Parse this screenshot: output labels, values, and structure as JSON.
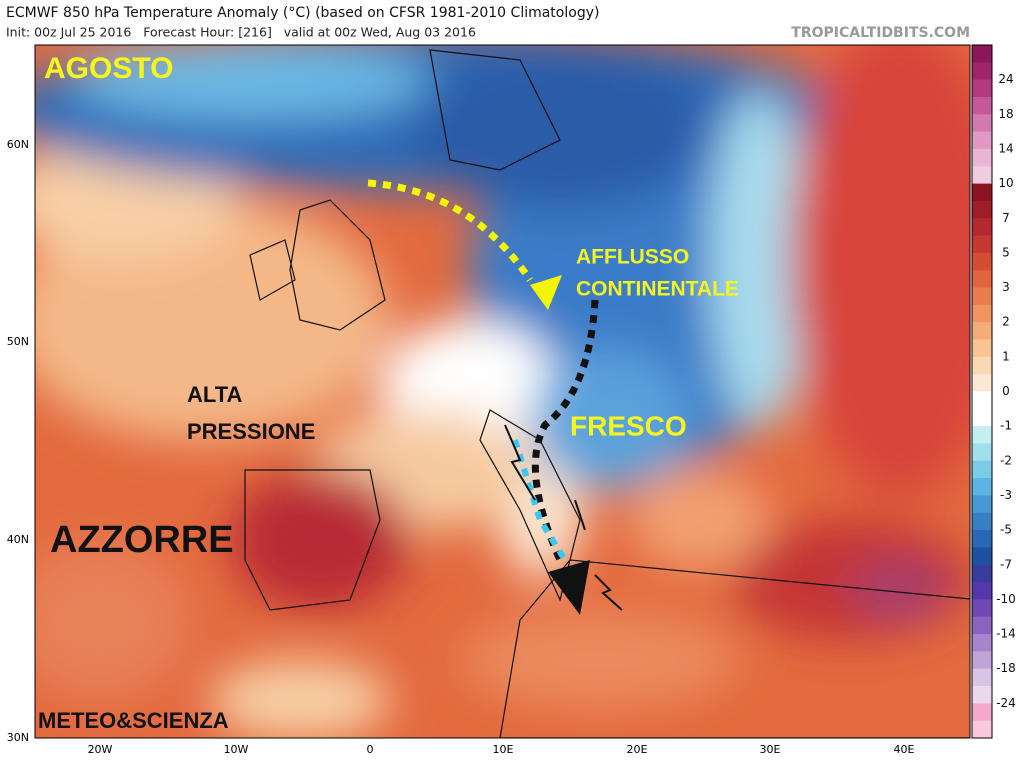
{
  "header": {
    "title": "ECMWF 850 hPa Temperature Anomaly (°C) (based on CFSR 1981-2010 Climatology)",
    "init": "Init: 00z Jul 25 2016   Forecast Hour: [216]   valid at 00z Wed, Aug 03 2016",
    "source": "TROPICALTIDBITS.COM"
  },
  "map": {
    "lat_labels": [
      "60N",
      "50N",
      "40N",
      "30N"
    ],
    "lon_labels": [
      "20W",
      "10W",
      "0",
      "10E",
      "20E",
      "30E",
      "40E"
    ],
    "annotations": [
      "AGOSTO",
      "AFFLUSSO",
      "CONTINENTALE",
      "ALTA",
      "PRESSIONE",
      "FRESCO",
      "AZZORRE",
      "METEO&SCIENZA"
    ]
  },
  "colorbar": {
    "labels": [
      24,
      18,
      14,
      10,
      7,
      5,
      3,
      2,
      1,
      0,
      -1,
      -2,
      -3,
      -5,
      -7,
      -10,
      -14,
      -18,
      -24
    ],
    "colors": [
      "#8a1858",
      "#a0246a",
      "#b43a80",
      "#c4589a",
      "#d478b0",
      "#e098c4",
      "#eab4d4",
      "#f0cce0",
      "#8c1420",
      "#a01c28",
      "#b42830",
      "#c43830",
      "#d44c34",
      "#e0643c",
      "#e87c4c",
      "#f09460",
      "#f4ac78",
      "#f8c494",
      "#fad8b4",
      "#fce8d4",
      "#ffffff",
      "#ffffff",
      "#c4eef0",
      "#a0e0ec",
      "#7ccce8",
      "#5cb4e0",
      "#4898d4",
      "#3880c4",
      "#2a68b4",
      "#2050a0",
      "#3a3c9c",
      "#5438a8",
      "#7048b4",
      "#8c64c0",
      "#a884cc",
      "#c0a4d8",
      "#d8c4e4",
      "#ecd8ee",
      "#f4a8cc",
      "#f8c8dc"
    ]
  }
}
